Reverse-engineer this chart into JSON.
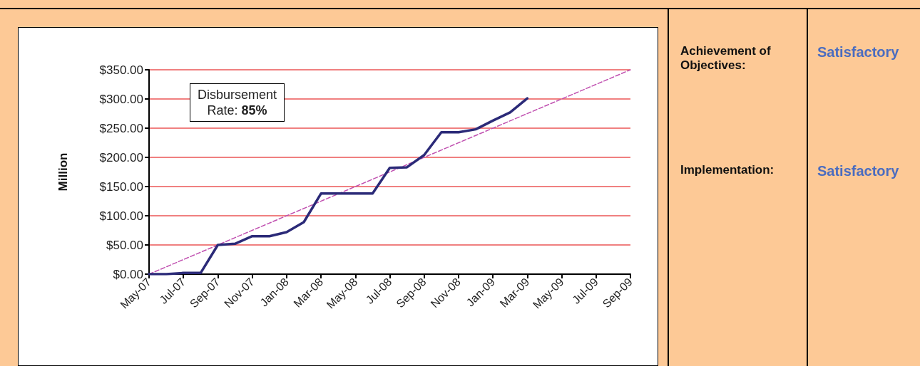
{
  "chart_data": [
    {
      "type": "line",
      "ylabel": "Million",
      "x": [
        "2007-05",
        "2007-06",
        "2007-07",
        "2007-08",
        "2007-09",
        "2007-10",
        "2007-11",
        "2007-12",
        "2008-01",
        "2008-02",
        "2008-03",
        "2008-04",
        "2008-05",
        "2008-06",
        "2008-07",
        "2008-08",
        "2008-09",
        "2008-10",
        "2008-11",
        "2008-12",
        "2009-01",
        "2009-02",
        "2009-03"
      ],
      "series": [
        {
          "color": "#2b2a78",
          "values": [
            0,
            0,
            2,
            2,
            50,
            52,
            65,
            65,
            72,
            89,
            138,
            138,
            138,
            138,
            182,
            183,
            204,
            243,
            243,
            248,
            263,
            277,
            301
          ]
        },
        {
          "type": "line",
          "color": "#c050b0",
          "line_style": "dashed",
          "x": [
            "2007-05",
            "2009-09"
          ],
          "values": [
            0,
            350
          ]
        }
      ],
      "xlim": [
        "2007-05",
        "2009-09"
      ],
      "xticks": [
        {
          "value": "2007-05",
          "label": "May-07"
        },
        {
          "value": "2007-07",
          "label": "Jul-07"
        },
        {
          "value": "2007-09",
          "label": "Sep-07"
        },
        {
          "value": "2007-11",
          "label": "Nov-07"
        },
        {
          "value": "2008-01",
          "label": "Jan-08"
        },
        {
          "value": "2008-03",
          "label": "Mar-08"
        },
        {
          "value": "2008-05",
          "label": "May-08"
        },
        {
          "value": "2008-07",
          "label": "Jul-08"
        },
        {
          "value": "2008-09",
          "label": "Sep-08"
        },
        {
          "value": "2008-11",
          "label": "Nov-08"
        },
        {
          "value": "2009-01",
          "label": "Jan-09"
        },
        {
          "value": "2009-03",
          "label": "Mar-09"
        },
        {
          "value": "2009-05",
          "label": "May-09"
        },
        {
          "value": "2009-07",
          "label": "Jul-09"
        },
        {
          "value": "2009-09",
          "label": "Sep-09"
        }
      ],
      "ylim": [
        0,
        350
      ],
      "yticks": [
        {
          "value": 0,
          "label": "$0.00"
        },
        {
          "value": 50,
          "label": "$50.00"
        },
        {
          "value": 100,
          "label": "$100.00"
        },
        {
          "value": 150,
          "label": "$150.00"
        },
        {
          "value": 200,
          "label": "$200.00"
        },
        {
          "value": 250,
          "label": "$250.00"
        },
        {
          "value": 300,
          "label": "$300.00"
        },
        {
          "value": 350,
          "label": "$350.00"
        }
      ],
      "grid": "y",
      "marker": "none",
      "line_style": "solid",
      "annotations": [
        "Disbursement Rate: 85%"
      ]
    },
    {
      "type": "other",
      "annotations": [
        "Achievement of Objectives:",
        "Satisfactory",
        "Implementation:",
        "Satisfactory"
      ]
    }
  ]
}
